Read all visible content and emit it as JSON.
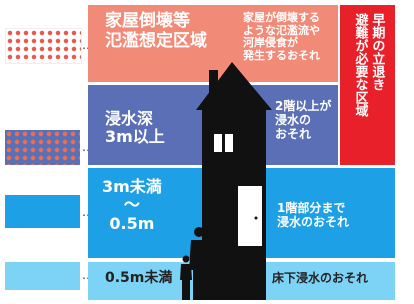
{
  "zones": [
    {
      "title_lines": [
        "家屋倒壊等",
        "氾濫想定区域"
      ],
      "note_lines": [
        "家屋が倒壊する",
        "ような氾濫流や",
        "河岸侵食が",
        "発生するおそれ"
      ]
    },
    {
      "title_lines": [
        "浸水深",
        "3m以上"
      ],
      "note_lines": [
        "2階以上が",
        "浸水の",
        "おそれ"
      ]
    },
    {
      "title_lines": [
        "3m未満",
        "～",
        "0.5m"
      ],
      "note_lines": [
        "1階部分まで",
        "浸水のおそれ"
      ]
    },
    {
      "title_lines": [
        "0.5m未満"
      ],
      "note_lines": [
        "床下浸水のおそれ"
      ]
    }
  ],
  "evacuation": {
    "lines": [
      "早期の立退き",
      "避難が必要な区域"
    ]
  }
}
